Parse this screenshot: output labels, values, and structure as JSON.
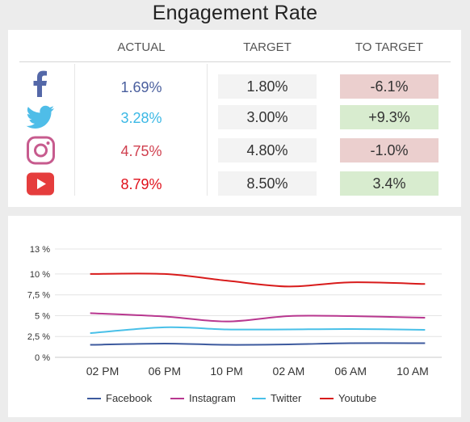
{
  "title": "Engagement Rate",
  "table": {
    "headers": {
      "actual": "ACTUAL",
      "target": "TARGET",
      "to_target": "TO TARGET"
    },
    "rows": [
      {
        "icon": "facebook-icon",
        "actual": "1.69%",
        "target": "1.80%",
        "to_target": "-6.1%",
        "actual_color": "#4a5f9e",
        "to_target_bg": "#ebcfce"
      },
      {
        "icon": "twitter-icon",
        "actual": "3.28%",
        "target": "3.00%",
        "to_target": "+9.3%",
        "actual_color": "#3bb8e5",
        "to_target_bg": "#d8eccf"
      },
      {
        "icon": "instagram-icon",
        "actual": "4.75%",
        "target": "4.80%",
        "to_target": "-1.0%",
        "actual_color": "#d0404f",
        "to_target_bg": "#ebcfce"
      },
      {
        "icon": "youtube-icon",
        "actual": "8.79%",
        "target": "8.50%",
        "to_target": "3.4%",
        "actual_color": "#e00f1a",
        "to_target_bg": "#d8eccf"
      }
    ]
  },
  "chart_data": {
    "type": "line",
    "categories": [
      "02 PM",
      "06 PM",
      "10 PM",
      "02 AM",
      "06 AM",
      "10 AM"
    ],
    "x": [
      0,
      1,
      2,
      3,
      4,
      5
    ],
    "ylim": [
      0,
      13
    ],
    "yticks": [
      0,
      2.5,
      5,
      7.5,
      10,
      13
    ],
    "ytick_labels": [
      "0 %",
      "2,5 %",
      "5 %",
      "7,5 %",
      "10 %",
      "13 %"
    ],
    "legend_position": "bottom",
    "grid": true,
    "series": [
      {
        "name": "Facebook",
        "color": "#3d5a9e",
        "values": [
          [
            -0.2,
            1.5
          ],
          [
            1,
            1.65
          ],
          [
            2,
            1.5
          ],
          [
            3,
            1.55
          ],
          [
            4,
            1.7
          ],
          [
            5.2,
            1.7
          ]
        ]
      },
      {
        "name": "Instagram",
        "color": "#b8378f",
        "values": [
          [
            -0.2,
            5.3
          ],
          [
            1,
            4.9
          ],
          [
            2,
            4.3
          ],
          [
            3,
            4.95
          ],
          [
            4,
            4.95
          ],
          [
            5.2,
            4.75
          ]
        ]
      },
      {
        "name": "Twitter",
        "color": "#49c0e8",
        "values": [
          [
            -0.2,
            2.9
          ],
          [
            1,
            3.6
          ],
          [
            2,
            3.35
          ],
          [
            3,
            3.35
          ],
          [
            4,
            3.4
          ],
          [
            5.2,
            3.3
          ]
        ]
      },
      {
        "name": "Youtube",
        "color": "#d81b1b",
        "values": [
          [
            -0.2,
            10.0
          ],
          [
            1,
            10.0
          ],
          [
            2,
            9.2
          ],
          [
            3,
            8.5
          ],
          [
            4,
            9.0
          ],
          [
            5.2,
            8.8
          ]
        ]
      }
    ]
  }
}
